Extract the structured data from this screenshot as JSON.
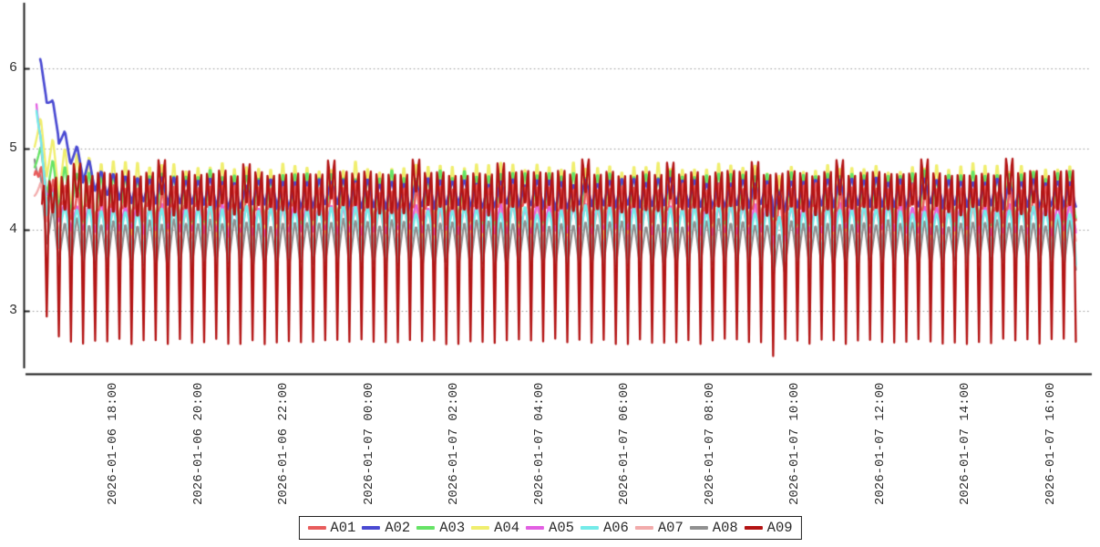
{
  "figure": {
    "background": "#ffffff",
    "axis_color": "#161616",
    "grid_color": "#9a9a9a",
    "tick_label_color": "#2e2e2e",
    "legend_border_color": "#202020",
    "legend_text_color": "#2a2a2a"
  },
  "chart_data": {
    "type": "line",
    "title": "",
    "xlabel": "",
    "ylabel": "",
    "x_tick_labels": [
      "2026-01-06 18:00",
      "2026-01-06 20:00",
      "2026-01-06 22:00",
      "2026-01-07 00:00",
      "2026-01-07 02:00",
      "2026-01-07 04:00",
      "2026-01-07 06:00",
      "2026-01-07 08:00",
      "2026-01-07 10:00",
      "2026-01-07 12:00",
      "2026-01-07 14:00",
      "2026-01-07 16:00"
    ],
    "y_ticks": [
      3,
      4,
      5,
      6
    ],
    "ylim": [
      2.2,
      6.8
    ],
    "grid": "horizontal-dotted",
    "legend_position": "bottom-center",
    "cycle_count": 86,
    "samples_per_cycle": 13,
    "series": [
      {
        "name": "A01",
        "color": "#e85c5c",
        "shape": "double",
        "initial": 4.78,
        "steady_high": 4.6,
        "steady_low": 3.98,
        "tau": 14,
        "delay": 0,
        "line_width": 2.6
      },
      {
        "name": "A02",
        "color": "#4a4ad2",
        "shape": "zigzag",
        "initial": 6.02,
        "steady_high": 4.62,
        "steady_low": 4.28,
        "tau": 30,
        "delay": 6,
        "line_width": 2.7
      },
      {
        "name": "A03",
        "color": "#66e366",
        "shape": "zigzag",
        "initial": 4.96,
        "steady_high": 4.72,
        "steady_low": 4.1,
        "tau": 18,
        "delay": 0,
        "line_width": 2.4
      },
      {
        "name": "A04",
        "color": "#f0ee6e",
        "shape": "zigzag",
        "initial": 5.28,
        "steady_high": 4.83,
        "steady_low": 3.97,
        "tau": 28,
        "delay": 0,
        "line_width": 2.4
      },
      {
        "name": "A05",
        "color": "#e25fe2",
        "shape": "zigzag",
        "initial": 5.62,
        "steady_high": 4.32,
        "steady_low": 3.97,
        "tau": 9,
        "delay": 2,
        "line_width": 2.3
      },
      {
        "name": "A06",
        "color": "#74ebe9",
        "shape": "vee",
        "initial": 5.48,
        "steady_high": 4.28,
        "steady_low": 3.62,
        "tau": 10,
        "delay": 2,
        "line_width": 2.5
      },
      {
        "name": "A07",
        "color": "#f2abab",
        "shape": "zigzag",
        "initial": 4.58,
        "steady_high": 4.3,
        "steady_low": 3.86,
        "tau": 16,
        "delay": 0,
        "line_width": 2.3
      },
      {
        "name": "A08",
        "color": "#909090",
        "shape": "zigzag",
        "initial": 5.06,
        "steady_high": 4.12,
        "steady_low": 3.56,
        "tau": 9,
        "delay": 0,
        "line_width": 2.3
      },
      {
        "name": "A09",
        "color": "#b31414",
        "shape": "spike",
        "initial": 4.34,
        "steady_high": 4.74,
        "steady_low": 2.62,
        "tau": 10,
        "delay": 8,
        "line_width": 2.3
      }
    ],
    "draw_order": [
      "A08",
      "A07",
      "A04",
      "A03",
      "A05",
      "A02",
      "A01",
      "A06",
      "A09"
    ],
    "anomaly": {
      "cycle": 61,
      "near_x_label": "2026-01-07 10:00",
      "a09_extra_dip": -0.18,
      "band_dip": -0.12
    },
    "tall_peak_every": 7,
    "tall_peak_extra": 0.15
  }
}
